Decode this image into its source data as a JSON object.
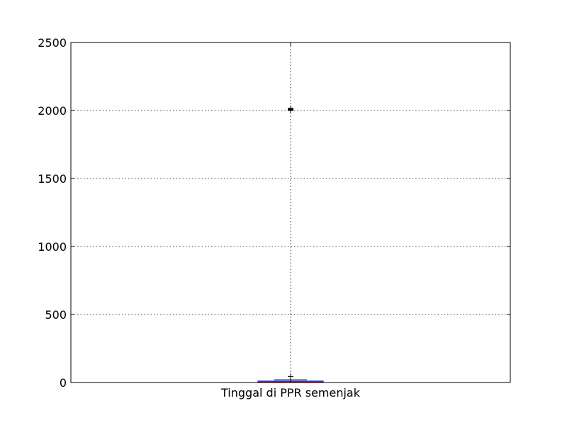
{
  "chart_data": {
    "type": "box",
    "title": "",
    "xlabel": "",
    "ylabel": "",
    "ylim": [
      0,
      2500
    ],
    "yticks": [
      0,
      500,
      1000,
      1500,
      2000,
      2500
    ],
    "ytick_labels": [
      "0",
      "500",
      "1000",
      "1500",
      "2000",
      "2500"
    ],
    "grid": true,
    "categories": [
      "Tinggal di PPR semenjak"
    ],
    "boxes": [
      {
        "category": "Tinggal di PPR semenjak",
        "whisker_low": 0,
        "q1": 0,
        "median": 5,
        "q3": 10,
        "whisker_high": 20,
        "fliers": [
          45,
          2000,
          2002,
          2004,
          2006,
          2008,
          2010,
          2012,
          2014,
          2016
        ]
      }
    ],
    "colors": {
      "box": "#0000ff",
      "median": "#ff0000",
      "whisker": "#000000",
      "grid": "#000000"
    }
  }
}
